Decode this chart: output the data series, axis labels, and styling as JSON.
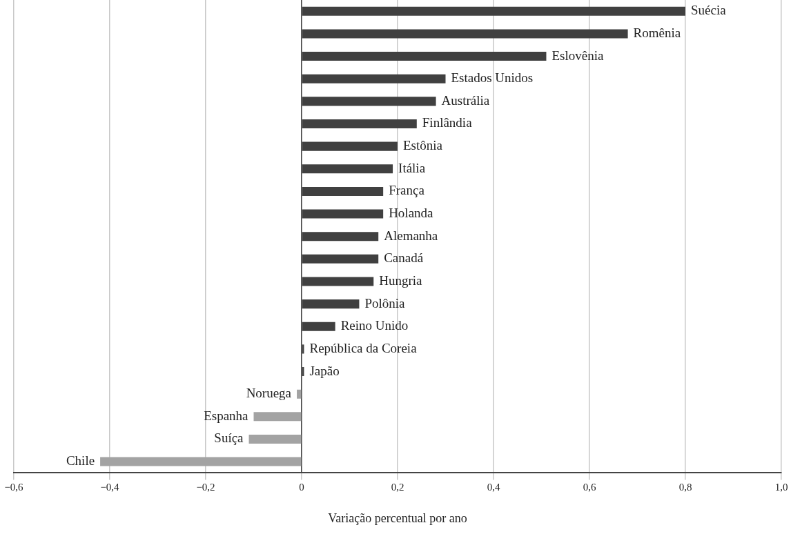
{
  "chart_data": {
    "type": "bar",
    "orientation": "horizontal",
    "xlabel": "Variação percentual por ano",
    "categories": [
      "Suécia",
      "Romênia",
      "Eslovênia",
      "Estados Unidos",
      "Austrália",
      "Finlândia",
      "Estônia",
      "Itália",
      "França",
      "Holanda",
      "Alemanha",
      "Canadá",
      "Hungria",
      "Polônia",
      "Reino Unido",
      "República da Coreia",
      "Japão",
      "Noruega",
      "Espanha",
      "Suíça",
      "Chile"
    ],
    "values": [
      0.8,
      0.68,
      0.51,
      0.3,
      0.28,
      0.24,
      0.2,
      0.19,
      0.17,
      0.17,
      0.16,
      0.16,
      0.15,
      0.12,
      0.07,
      0.005,
      0.005,
      -0.01,
      -0.1,
      -0.11,
      -0.42
    ],
    "colors": [
      "#404040",
      "#404040",
      "#404040",
      "#404040",
      "#404040",
      "#404040",
      "#404040",
      "#404040",
      "#404040",
      "#404040",
      "#404040",
      "#404040",
      "#404040",
      "#404040",
      "#404040",
      "#404040",
      "#404040",
      "#a3a3a3",
      "#a3a3a3",
      "#a3a3a3",
      "#a3a3a3"
    ],
    "xlim": [
      -0.6,
      1.0
    ],
    "xticks": [
      {
        "value": -0.6,
        "label": "−0,6"
      },
      {
        "value": -0.4,
        "label": "−0,4"
      },
      {
        "value": -0.2,
        "label": "−0,2"
      },
      0,
      {
        "value": 0.2,
        "label": "0,2"
      },
      {
        "value": 0.4,
        "label": "0,4"
      },
      {
        "value": 0.6,
        "label": "0,6"
      },
      {
        "value": 0.8,
        "label": "0,8"
      },
      {
        "value": 1.0,
        "label": "1,0"
      }
    ],
    "grid": "x",
    "tick_labels": "x"
  }
}
